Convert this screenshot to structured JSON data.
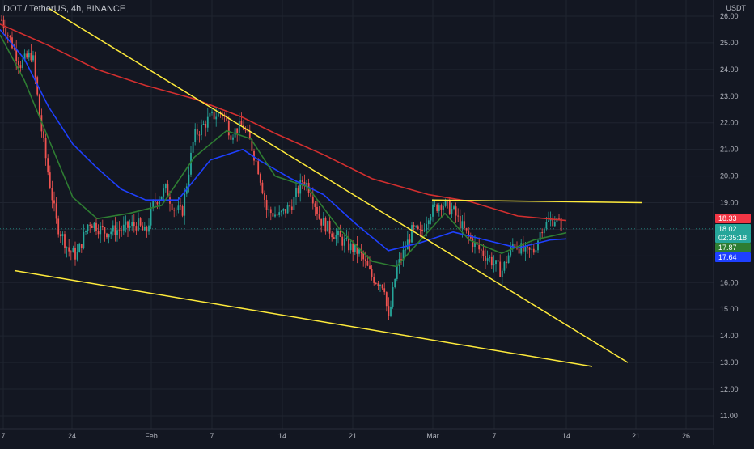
{
  "header": {
    "symbol_line": "DOT / TetherUS, 4h, BINANCE"
  },
  "axis": {
    "currency": "USDT"
  },
  "chart_data": {
    "type": "candlestick",
    "y_ticks": [
      "26.00",
      "25.00",
      "24.00",
      "23.00",
      "22.00",
      "21.00",
      "20.00",
      "19.00",
      "18.00",
      "17.00",
      "16.00",
      "15.00",
      "14.00",
      "13.00",
      "12.00",
      "11.00"
    ],
    "ylim": [
      10.8,
      26.4
    ],
    "x_ticks": [
      "7",
      "24",
      "Feb",
      "7",
      "14",
      "21",
      "Mar",
      "7",
      "14",
      "21",
      "26"
    ],
    "series": [
      {
        "name": "",
        "color": "#d32f2f",
        "points": [
          [
            0,
            25.7
          ],
          [
            60,
            24.9
          ],
          [
            120,
            24.0
          ],
          [
            180,
            23.4
          ],
          [
            240,
            22.9
          ],
          [
            300,
            22.2
          ],
          [
            340,
            21.6
          ],
          [
            400,
            20.8
          ],
          [
            460,
            19.9
          ],
          [
            530,
            19.3
          ],
          [
            580,
            19.05
          ],
          [
            640,
            18.5
          ],
          [
            700,
            18.33
          ]
        ]
      },
      {
        "name": "",
        "color": "#1e40ff",
        "points": [
          [
            0,
            25.5
          ],
          [
            30,
            24.4
          ],
          [
            60,
            22.6
          ],
          [
            90,
            21.2
          ],
          [
            120,
            20.3
          ],
          [
            150,
            19.5
          ],
          [
            180,
            19.1
          ],
          [
            220,
            19.1
          ],
          [
            260,
            20.6
          ],
          [
            300,
            21.0
          ],
          [
            320,
            20.6
          ],
          [
            360,
            19.9
          ],
          [
            400,
            19.3
          ],
          [
            440,
            18.2
          ],
          [
            480,
            17.2
          ],
          [
            520,
            17.5
          ],
          [
            560,
            17.9
          ],
          [
            600,
            17.6
          ],
          [
            640,
            17.3
          ],
          [
            680,
            17.6
          ],
          [
            700,
            17.64
          ]
        ]
      },
      {
        "name": "",
        "color": "#2e7d32",
        "points": [
          [
            0,
            25.3
          ],
          [
            30,
            23.6
          ],
          [
            60,
            21.4
          ],
          [
            90,
            19.2
          ],
          [
            120,
            18.4
          ],
          [
            160,
            18.6
          ],
          [
            200,
            18.9
          ],
          [
            240,
            20.7
          ],
          [
            280,
            21.7
          ],
          [
            310,
            21.4
          ],
          [
            340,
            20.0
          ],
          [
            380,
            19.6
          ],
          [
            420,
            18.0
          ],
          [
            460,
            16.8
          ],
          [
            490,
            16.6
          ],
          [
            520,
            17.6
          ],
          [
            550,
            18.6
          ],
          [
            580,
            17.6
          ],
          [
            620,
            17.1
          ],
          [
            660,
            17.6
          ],
          [
            700,
            17.87
          ]
        ]
      }
    ],
    "trendlines": [
      {
        "points": [
          [
            60,
            26.3
          ],
          [
            776,
            13.0
          ]
        ]
      },
      {
        "points": [
          [
            18,
            16.45
          ],
          [
            732,
            12.85
          ]
        ]
      },
      {
        "points": [
          [
            534,
            19.1
          ],
          [
            794,
            19.0
          ]
        ]
      }
    ],
    "price_labels": [
      {
        "text": "18.33",
        "color": "#f23645"
      },
      {
        "text": "18.02",
        "color": "#26a69a"
      },
      {
        "text": "02:35:18",
        "color": "#26a69a"
      },
      {
        "text": "17.87",
        "color": "#2e7d32"
      },
      {
        "text": "17.64",
        "color": "#1e40ff"
      }
    ],
    "last_price": 18.02
  }
}
